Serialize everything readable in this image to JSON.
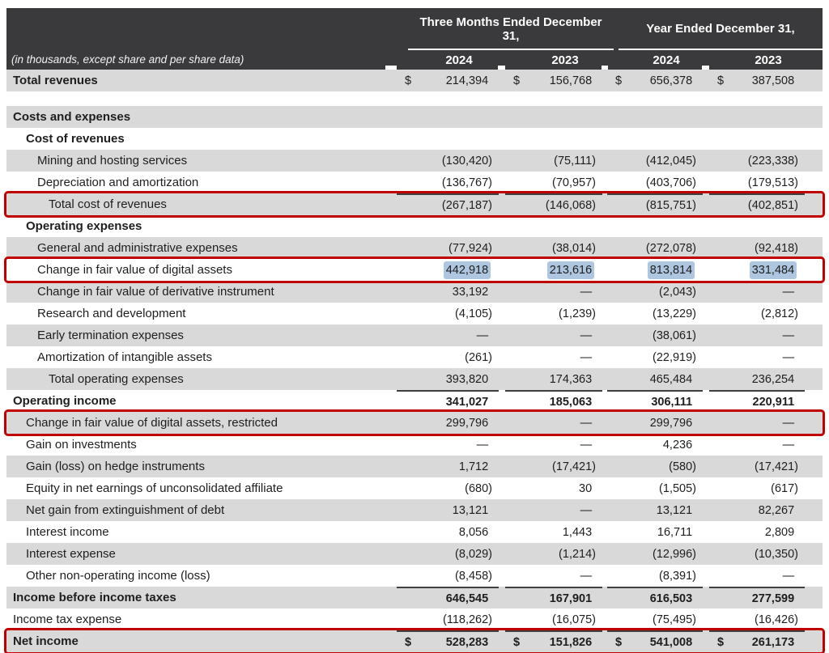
{
  "colors": {
    "header_bg": "#3a393b",
    "row_gray": "#d9d9d9",
    "annotation_red": "#c00000",
    "value_highlight_blue": "#aec6e0",
    "text": "#1e1e1e",
    "header_text": "#ffffff"
  },
  "header": {
    "note": "(in thousands, except share and per share data)",
    "col_groups": [
      {
        "label": "Three Months Ended December 31,",
        "years": [
          "2024",
          "2023"
        ]
      },
      {
        "label": "Year Ended December 31,",
        "years": [
          "2024",
          "2023"
        ]
      }
    ]
  },
  "rows": [
    {
      "label": "Total revenues",
      "indent": 0,
      "bold": true,
      "shade": "gray",
      "dollar": true,
      "bold_values": false,
      "topline": false,
      "red_box": false,
      "highlight_values": false,
      "values": [
        "214,394",
        "156,768",
        "656,378",
        "387,508"
      ]
    },
    {
      "spacer": true
    },
    {
      "label": "Costs and expenses",
      "indent": 0,
      "bold": true,
      "shade": "gray",
      "dollar": false,
      "bold_values": false,
      "topline": false,
      "red_box": false,
      "highlight_values": false,
      "values": [
        "",
        "",
        "",
        ""
      ]
    },
    {
      "label": "Cost of revenues",
      "indent": 1,
      "bold": true,
      "shade": "white",
      "dollar": false,
      "bold_values": false,
      "topline": false,
      "red_box": false,
      "highlight_values": false,
      "values": [
        "",
        "",
        "",
        ""
      ]
    },
    {
      "label": "Mining and hosting services",
      "indent": 2,
      "bold": false,
      "shade": "gray",
      "dollar": false,
      "bold_values": false,
      "topline": false,
      "red_box": false,
      "highlight_values": false,
      "values": [
        "(130,420)",
        "(75,111)",
        "(412,045)",
        "(223,338)"
      ]
    },
    {
      "label": "Depreciation and amortization",
      "indent": 2,
      "bold": false,
      "shade": "white",
      "dollar": false,
      "bold_values": false,
      "topline": false,
      "red_box": false,
      "highlight_values": false,
      "values": [
        "(136,767)",
        "(70,957)",
        "(403,706)",
        "(179,513)"
      ]
    },
    {
      "label": "Total cost of revenues",
      "indent": 3,
      "bold": false,
      "shade": "gray",
      "dollar": false,
      "bold_values": false,
      "topline": true,
      "red_box": true,
      "highlight_values": false,
      "values": [
        "(267,187)",
        "(146,068)",
        "(815,751)",
        "(402,851)"
      ]
    },
    {
      "label": "Operating expenses",
      "indent": 1,
      "bold": true,
      "shade": "white",
      "dollar": false,
      "bold_values": false,
      "topline": false,
      "red_box": false,
      "highlight_values": false,
      "values": [
        "",
        "",
        "",
        ""
      ]
    },
    {
      "label": "General and administrative expenses",
      "indent": 2,
      "bold": false,
      "shade": "gray",
      "dollar": false,
      "bold_values": false,
      "topline": false,
      "red_box": false,
      "highlight_values": false,
      "values": [
        "(77,924)",
        "(38,014)",
        "(272,078)",
        "(92,418)"
      ]
    },
    {
      "label": "Change in fair value of digital assets",
      "indent": 2,
      "bold": false,
      "shade": "white",
      "dollar": false,
      "bold_values": false,
      "topline": false,
      "red_box": true,
      "highlight_values": true,
      "values": [
        "442,918",
        "213,616",
        "813,814",
        "331,484"
      ]
    },
    {
      "label": "Change in fair value of derivative instrument",
      "indent": 2,
      "bold": false,
      "shade": "gray",
      "dollar": false,
      "bold_values": false,
      "topline": false,
      "red_box": false,
      "highlight_values": false,
      "values": [
        "33,192",
        "—",
        "(2,043)",
        "—"
      ]
    },
    {
      "label": "Research and development",
      "indent": 2,
      "bold": false,
      "shade": "white",
      "dollar": false,
      "bold_values": false,
      "topline": false,
      "red_box": false,
      "highlight_values": false,
      "values": [
        "(4,105)",
        "(1,239)",
        "(13,229)",
        "(2,812)"
      ]
    },
    {
      "label": "Early termination expenses",
      "indent": 2,
      "bold": false,
      "shade": "gray",
      "dollar": false,
      "bold_values": false,
      "topline": false,
      "red_box": false,
      "highlight_values": false,
      "values": [
        "—",
        "—",
        "(38,061)",
        "—"
      ]
    },
    {
      "label": "Amortization of intangible assets",
      "indent": 2,
      "bold": false,
      "shade": "white",
      "dollar": false,
      "bold_values": false,
      "topline": false,
      "red_box": false,
      "highlight_values": false,
      "values": [
        "(261)",
        "—",
        "(22,919)",
        "—"
      ]
    },
    {
      "label": "Total operating expenses",
      "indent": 3,
      "bold": false,
      "shade": "gray",
      "dollar": false,
      "bold_values": false,
      "topline": false,
      "red_box": false,
      "highlight_values": false,
      "values": [
        "393,820",
        "174,363",
        "465,484",
        "236,254"
      ]
    },
    {
      "label": "Operating income",
      "indent": 0,
      "bold": true,
      "shade": "white",
      "dollar": false,
      "bold_values": true,
      "topline": true,
      "red_box": false,
      "highlight_values": false,
      "values": [
        "341,027",
        "185,063",
        "306,111",
        "220,911"
      ]
    },
    {
      "label": "Change in fair value of digital assets, restricted",
      "indent": 1,
      "bold": false,
      "shade": "gray",
      "dollar": false,
      "bold_values": false,
      "topline": false,
      "red_box": true,
      "highlight_values": false,
      "values": [
        "299,796",
        "—",
        "299,796",
        "—"
      ]
    },
    {
      "label": "Gain on investments",
      "indent": 1,
      "bold": false,
      "shade": "white",
      "dollar": false,
      "bold_values": false,
      "topline": false,
      "red_box": false,
      "highlight_values": false,
      "values": [
        "—",
        "—",
        "4,236",
        "—"
      ]
    },
    {
      "label": "Gain (loss) on hedge instruments",
      "indent": 1,
      "bold": false,
      "shade": "gray",
      "dollar": false,
      "bold_values": false,
      "topline": false,
      "red_box": false,
      "highlight_values": false,
      "values": [
        "1,712",
        "(17,421)",
        "(580)",
        "(17,421)"
      ]
    },
    {
      "label": "Equity in net earnings of unconsolidated affiliate",
      "indent": 1,
      "bold": false,
      "shade": "white",
      "dollar": false,
      "bold_values": false,
      "topline": false,
      "red_box": false,
      "highlight_values": false,
      "values": [
        "(680)",
        "30",
        "(1,505)",
        "(617)"
      ]
    },
    {
      "label": "Net gain from extinguishment of debt",
      "indent": 1,
      "bold": false,
      "shade": "gray",
      "dollar": false,
      "bold_values": false,
      "topline": false,
      "red_box": false,
      "highlight_values": false,
      "values": [
        "13,121",
        "—",
        "13,121",
        "82,267"
      ]
    },
    {
      "label": "Interest income",
      "indent": 1,
      "bold": false,
      "shade": "white",
      "dollar": false,
      "bold_values": false,
      "topline": false,
      "red_box": false,
      "highlight_values": false,
      "values": [
        "8,056",
        "1,443",
        "16,711",
        "2,809"
      ]
    },
    {
      "label": "Interest expense",
      "indent": 1,
      "bold": false,
      "shade": "gray",
      "dollar": false,
      "bold_values": false,
      "topline": false,
      "red_box": false,
      "highlight_values": false,
      "values": [
        "(8,029)",
        "(1,214)",
        "(12,996)",
        "(10,350)"
      ]
    },
    {
      "label": "Other non-operating income (loss)",
      "indent": 1,
      "bold": false,
      "shade": "white",
      "dollar": false,
      "bold_values": false,
      "topline": false,
      "red_box": false,
      "highlight_values": false,
      "values": [
        "(8,458)",
        "—",
        "(8,391)",
        "—"
      ]
    },
    {
      "label": "Income before income taxes",
      "indent": 0,
      "bold": true,
      "shade": "gray",
      "dollar": false,
      "bold_values": true,
      "topline": true,
      "red_box": false,
      "highlight_values": false,
      "values": [
        "646,545",
        "167,901",
        "616,503",
        "277,599"
      ]
    },
    {
      "label": "Income tax expense",
      "indent": 0,
      "bold": false,
      "shade": "white",
      "dollar": false,
      "bold_values": false,
      "topline": false,
      "red_box": false,
      "highlight_values": false,
      "values": [
        "(118,262)",
        "(16,075)",
        "(75,495)",
        "(16,426)"
      ]
    },
    {
      "label": "Net income",
      "indent": 0,
      "bold": true,
      "shade": "gray",
      "dollar": true,
      "bold_values": true,
      "topline": true,
      "red_box": true,
      "highlight_values": false,
      "values": [
        "528,283",
        "151,826",
        "541,008",
        "261,173"
      ]
    }
  ]
}
